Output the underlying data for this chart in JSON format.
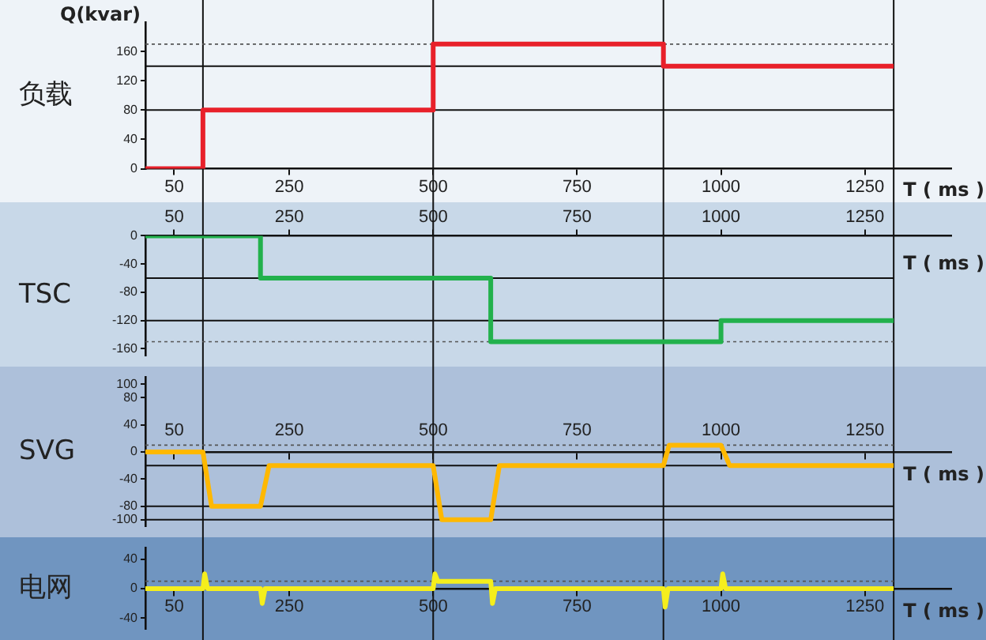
{
  "chart_data": [
    {
      "type": "step",
      "title": "负载",
      "ylabel": "Q(kvar)",
      "xlabel": "T ( ms )",
      "x": [
        0,
        100,
        500,
        900,
        1300
      ],
      "values": [
        0,
        80,
        170,
        140,
        140
      ],
      "color": "#e8202a",
      "xlim": [
        0,
        1400
      ],
      "xticks": [
        50,
        250,
        500,
        750,
        1000,
        1250
      ],
      "ylim": [
        0,
        200
      ],
      "yticks": [
        0,
        40,
        80,
        120,
        160
      ],
      "grid": false,
      "legend": false,
      "marker": "none",
      "line_style": "solid",
      "ref_lines": [
        {
          "axis": "x",
          "value": 100
        },
        {
          "axis": "x",
          "value": 500
        },
        {
          "axis": "x",
          "value": 900
        },
        {
          "axis": "x",
          "value": 1300
        },
        {
          "axis": "y",
          "value": 80
        },
        {
          "axis": "y",
          "value": 140
        },
        {
          "axis": "y",
          "value": 170,
          "line_style": "dotted"
        }
      ]
    },
    {
      "type": "step",
      "title": "TSC",
      "xlabel": "T ( ms )",
      "x": [
        0,
        200,
        600,
        1000,
        1300
      ],
      "values": [
        0,
        -60,
        -150,
        -120,
        -120
      ],
      "color": "#22b14c",
      "xlim": [
        0,
        1400
      ],
      "xticks": [
        50,
        250,
        500,
        750,
        1000,
        1250
      ],
      "ylim": [
        -170,
        0
      ],
      "yticks": [
        0,
        -40,
        -80,
        -120,
        -160
      ],
      "grid": false,
      "legend": false,
      "marker": "none",
      "line_style": "solid",
      "ref_lines": [
        {
          "axis": "x",
          "value": 100
        },
        {
          "axis": "x",
          "value": 500
        },
        {
          "axis": "x",
          "value": 900
        },
        {
          "axis": "x",
          "value": 1300
        },
        {
          "axis": "y",
          "value": -60
        },
        {
          "axis": "y",
          "value": -120
        },
        {
          "axis": "y",
          "value": -150,
          "line_style": "dotted"
        }
      ]
    },
    {
      "type": "line",
      "title": "SVG",
      "xlabel": "T ( ms )",
      "x": [
        0,
        100,
        115,
        200,
        215,
        500,
        515,
        600,
        615,
        900,
        910,
        1000,
        1015,
        1300
      ],
      "values": [
        0,
        0,
        -80,
        -80,
        -20,
        -20,
        -100,
        -100,
        -20,
        -20,
        10,
        10,
        -20,
        -20
      ],
      "color": "#ffb800",
      "xlim": [
        0,
        1400
      ],
      "xticks": [
        50,
        250,
        500,
        750,
        1000,
        1250
      ],
      "ylim": [
        -110,
        110
      ],
      "yticks": [
        100,
        80,
        40,
        0,
        -40,
        -80,
        -100
      ],
      "grid": false,
      "legend": false,
      "marker": "none",
      "line_style": "solid",
      "ref_lines": [
        {
          "axis": "x",
          "value": 100
        },
        {
          "axis": "x",
          "value": 500
        },
        {
          "axis": "x",
          "value": 900
        },
        {
          "axis": "x",
          "value": 1300
        },
        {
          "axis": "y",
          "value": 10,
          "line_style": "dotted"
        },
        {
          "axis": "y",
          "value": -20
        },
        {
          "axis": "y",
          "value": -80
        },
        {
          "axis": "y",
          "value": -100
        }
      ]
    },
    {
      "type": "line",
      "title": "电网",
      "xlabel": "T ( ms )",
      "x": [
        0,
        100,
        103,
        108,
        200,
        203,
        208,
        500,
        503,
        508,
        600,
        603,
        608,
        900,
        903,
        908,
        1000,
        1003,
        1008,
        1300
      ],
      "values": [
        0,
        0,
        20,
        0,
        0,
        -20,
        0,
        0,
        20,
        10,
        10,
        -20,
        0,
        0,
        -25,
        0,
        0,
        20,
        0,
        0
      ],
      "color": "#f5ee1c",
      "xlim": [
        0,
        1400
      ],
      "xticks": [
        50,
        250,
        500,
        750,
        1000,
        1250
      ],
      "ylim": [
        -55,
        55
      ],
      "yticks": [
        40,
        0,
        -40
      ],
      "grid": false,
      "legend": false,
      "marker": "none",
      "line_style": "solid",
      "ref_lines": [
        {
          "axis": "x",
          "value": 100
        },
        {
          "axis": "x",
          "value": 500
        },
        {
          "axis": "x",
          "value": 900
        },
        {
          "axis": "x",
          "value": 1300
        },
        {
          "axis": "y",
          "value": 10,
          "line_style": "dotted"
        }
      ]
    }
  ]
}
